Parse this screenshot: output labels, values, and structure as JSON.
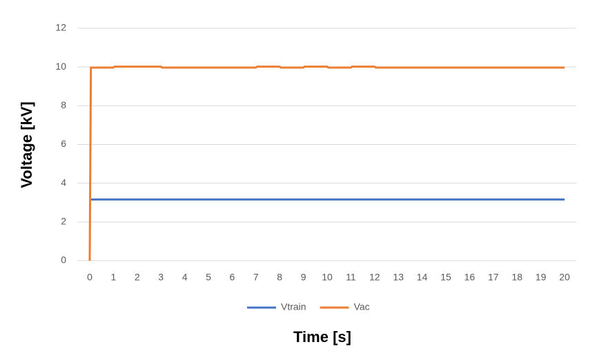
{
  "chart_data": {
    "type": "line",
    "x_label": "Time [s]",
    "y_label": "Voltage [kV]",
    "xlim": [
      0,
      20
    ],
    "xticks": [
      0,
      1,
      2,
      3,
      4,
      5,
      6,
      7,
      8,
      9,
      10,
      11,
      12,
      13,
      14,
      15,
      16,
      17,
      18,
      19,
      20
    ],
    "ylim": [
      0,
      12
    ],
    "yticks": [
      0,
      2,
      4,
      6,
      8,
      10,
      12
    ],
    "grid": true,
    "legend": "bottom",
    "series": [
      {
        "name": "Vtrain",
        "color": "#4472c4",
        "x": [
          0,
          20
        ],
        "values": [
          3.16,
          3.16
        ]
      },
      {
        "name": "Vac",
        "color": "#ed7d31",
        "x": [
          0,
          0.05,
          1,
          1.05,
          3,
          3.05,
          7,
          7.05,
          8,
          8.05,
          9,
          9.05,
          10,
          10.05,
          11,
          11.05,
          12,
          12.05,
          20
        ],
        "values": [
          0,
          9.97,
          9.97,
          10.02,
          10.02,
          9.97,
          9.97,
          10.02,
          10.02,
          9.97,
          9.97,
          10.02,
          10.02,
          9.97,
          9.97,
          10.02,
          10.02,
          9.97,
          9.97
        ]
      }
    ]
  }
}
